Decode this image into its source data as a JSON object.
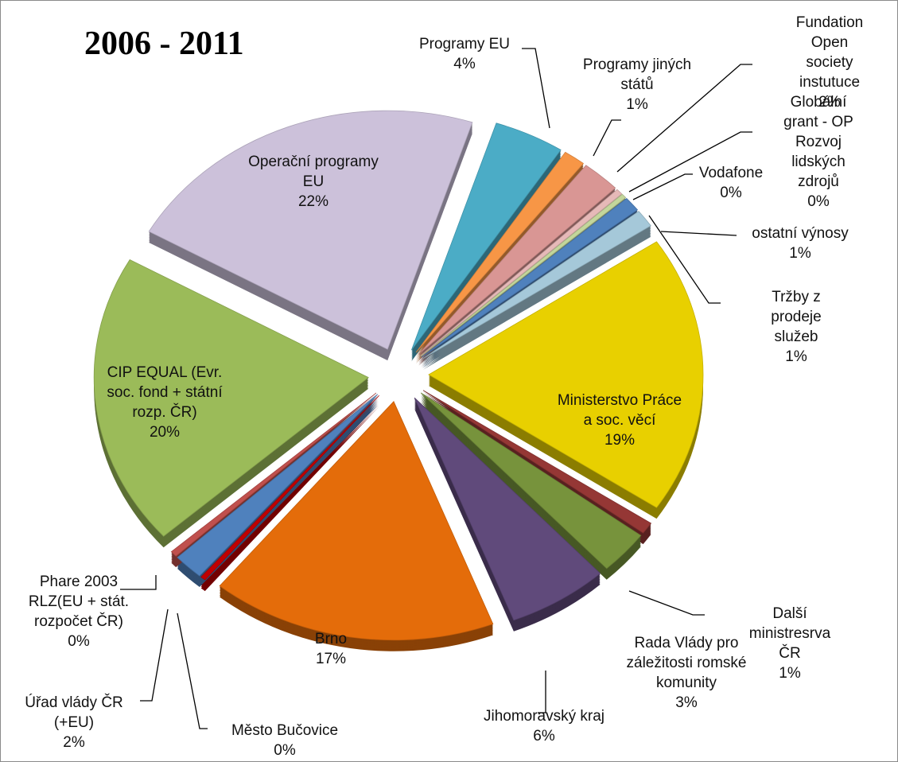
{
  "chart_data": {
    "type": "pie",
    "title": "2006 - 2011",
    "categories": [
      "Programy EU",
      "Programy jiných\nstátů",
      "Fundation Open\nsociety instutuce",
      "Globální grant - OP\nRozvoj lidských\nzdrojů",
      "Vodafone",
      "ostatní výnosy",
      "Tržby z prodeje\nslužeb",
      "Ministerstvo Práce\na soc. věcí",
      "Další ministresrva\nČR",
      "Rada Vlády pro\nzáležitosti romské\nkomunity",
      "Jihomoravský kraj",
      "Brno",
      "Město Bučovice",
      "Úřad vlády ČR\n(+EU)",
      "Phare 2003\nRLZ(EU + stát.\nrozpočet ČR)",
      "CIP EQUAL (Evr.\nsoc. fond + státní\nrozp. ČR)",
      "Operační programy\nEU"
    ],
    "values": [
      4.2,
      1.3,
      2.3,
      0.4,
      0.3,
      1.0,
      1.2,
      19,
      0.8,
      3,
      6,
      17,
      0.3,
      1.8,
      0.4,
      20,
      22
    ],
    "value_labels": [
      "4%",
      "1%",
      "2%",
      "0%",
      "0%",
      "1%",
      "1%",
      "19%",
      "1%",
      "3%",
      "6%",
      "17%",
      "0%",
      "2%",
      "0%",
      "20%",
      "22%"
    ],
    "colors": [
      "#4bacc6",
      "#f79646",
      "#d99694",
      "#e6b9b8",
      "#c3d69b",
      "#4f81bd",
      "#a5c8d9",
      "#e8d000",
      "#953735",
      "#77933c",
      "#604a7b",
      "#e46c0a",
      "#c00000",
      "#4f81bd",
      "#c0504d",
      "#9bbb59",
      "#ccc1da"
    ]
  }
}
